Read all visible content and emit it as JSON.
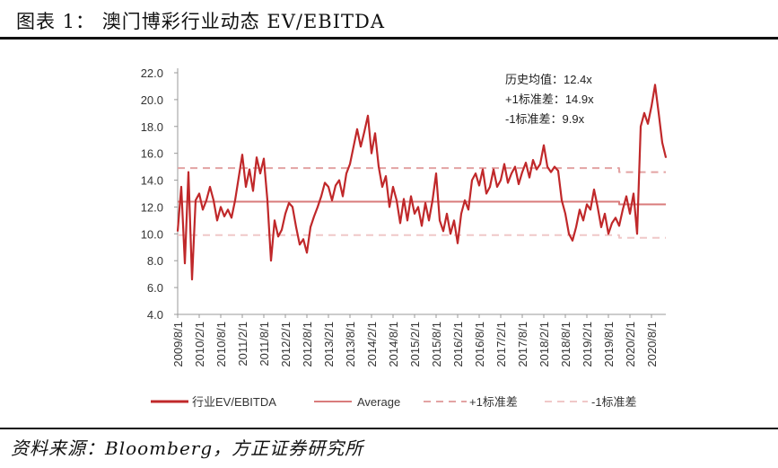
{
  "title": "图表 1：  澳门博彩行业动态 EV/EBITDA",
  "source": "资料来源：Bloomberg，方正证券研究所",
  "chart_data": {
    "type": "line",
    "title": "",
    "xlabel": "",
    "ylabel": "",
    "ylim": [
      4.0,
      22.0
    ],
    "y_ticks": [
      "4.0",
      "6.0",
      "8.0",
      "10.0",
      "12.0",
      "14.0",
      "16.0",
      "18.0",
      "20.0",
      "22.0"
    ],
    "x_tick_labels": [
      "2009/8/1",
      "2010/2/1",
      "2010/8/1",
      "2011/2/1",
      "2011/8/1",
      "2012/2/1",
      "2012/8/1",
      "2013/2/1",
      "2013/8/1",
      "2014/2/1",
      "2014/8/1",
      "2015/2/1",
      "2015/8/1",
      "2016/2/1",
      "2016/8/1",
      "2017/2/1",
      "2017/8/1",
      "2018/2/1",
      "2018/8/1",
      "2019/2/1",
      "2019/8/1",
      "2020/2/1",
      "2020/8/1"
    ],
    "x_range": [
      "2009-08",
      "2020-12"
    ],
    "grid": false,
    "legend_position": "bottom",
    "colors": {
      "main": "#c0282a",
      "average": "#d97b7b",
      "plus_std": "#e3a3a3",
      "minus_std": "#f0c8c8"
    },
    "series": [
      {
        "name": "行业EV/EBITDA",
        "style": "solid",
        "points": [
          [
            "2009-08",
            10.2
          ],
          [
            "2009-09",
            13.5
          ],
          [
            "2009-10",
            7.8
          ],
          [
            "2009-11",
            14.6
          ],
          [
            "2009-12",
            6.6
          ],
          [
            "2010-01",
            12.5
          ],
          [
            "2010-02",
            13.0
          ],
          [
            "2010-03",
            11.8
          ],
          [
            "2010-04",
            12.5
          ],
          [
            "2010-05",
            13.5
          ],
          [
            "2010-06",
            12.5
          ],
          [
            "2010-07",
            11.0
          ],
          [
            "2010-08",
            12.0
          ],
          [
            "2010-09",
            11.3
          ],
          [
            "2010-10",
            11.8
          ],
          [
            "2010-11",
            11.2
          ],
          [
            "2010-12",
            12.5
          ],
          [
            "2011-01",
            14.2
          ],
          [
            "2011-02",
            15.9
          ],
          [
            "2011-03",
            13.5
          ],
          [
            "2011-04",
            14.8
          ],
          [
            "2011-05",
            13.2
          ],
          [
            "2011-06",
            15.7
          ],
          [
            "2011-07",
            14.5
          ],
          [
            "2011-08",
            15.6
          ],
          [
            "2011-09",
            12.5
          ],
          [
            "2011-10",
            8.0
          ],
          [
            "2011-11",
            11.0
          ],
          [
            "2011-12",
            9.8
          ],
          [
            "2012-01",
            10.3
          ],
          [
            "2012-02",
            11.5
          ],
          [
            "2012-03",
            12.3
          ],
          [
            "2012-04",
            12.0
          ],
          [
            "2012-05",
            10.5
          ],
          [
            "2012-06",
            9.2
          ],
          [
            "2012-07",
            9.6
          ],
          [
            "2012-08",
            8.6
          ],
          [
            "2012-09",
            10.5
          ],
          [
            "2012-10",
            11.3
          ],
          [
            "2012-11",
            12.0
          ],
          [
            "2012-12",
            12.8
          ],
          [
            "2013-01",
            13.8
          ],
          [
            "2013-02",
            13.5
          ],
          [
            "2013-03",
            12.5
          ],
          [
            "2013-04",
            13.6
          ],
          [
            "2013-05",
            14.0
          ],
          [
            "2013-06",
            12.8
          ],
          [
            "2013-07",
            14.5
          ],
          [
            "2013-08",
            15.2
          ],
          [
            "2013-09",
            16.5
          ],
          [
            "2013-10",
            17.8
          ],
          [
            "2013-11",
            16.5
          ],
          [
            "2013-12",
            17.6
          ],
          [
            "2014-01",
            18.8
          ],
          [
            "2014-02",
            16.0
          ],
          [
            "2014-03",
            17.5
          ],
          [
            "2014-04",
            15.0
          ],
          [
            "2014-05",
            13.5
          ],
          [
            "2014-06",
            14.3
          ],
          [
            "2014-07",
            12.0
          ],
          [
            "2014-08",
            13.5
          ],
          [
            "2014-09",
            12.5
          ],
          [
            "2014-10",
            10.8
          ],
          [
            "2014-11",
            12.6
          ],
          [
            "2014-12",
            11.0
          ],
          [
            "2015-01",
            12.8
          ],
          [
            "2015-02",
            11.5
          ],
          [
            "2015-03",
            12.0
          ],
          [
            "2015-04",
            10.6
          ],
          [
            "2015-05",
            12.3
          ],
          [
            "2015-06",
            11.0
          ],
          [
            "2015-07",
            12.5
          ],
          [
            "2015-08",
            14.5
          ],
          [
            "2015-09",
            11.0
          ],
          [
            "2015-10",
            10.2
          ],
          [
            "2015-11",
            11.5
          ],
          [
            "2015-12",
            10.0
          ],
          [
            "2016-01",
            11.0
          ],
          [
            "2016-02",
            9.3
          ],
          [
            "2016-03",
            11.5
          ],
          [
            "2016-04",
            12.5
          ],
          [
            "2016-05",
            11.8
          ],
          [
            "2016-06",
            14.0
          ],
          [
            "2016-07",
            14.5
          ],
          [
            "2016-08",
            13.6
          ],
          [
            "2016-09",
            14.8
          ],
          [
            "2016-10",
            13.0
          ],
          [
            "2016-11",
            13.5
          ],
          [
            "2016-12",
            14.8
          ],
          [
            "2017-01",
            13.5
          ],
          [
            "2017-02",
            14.0
          ],
          [
            "2017-03",
            15.2
          ],
          [
            "2017-04",
            13.8
          ],
          [
            "2017-05",
            14.5
          ],
          [
            "2017-06",
            15.0
          ],
          [
            "2017-07",
            13.7
          ],
          [
            "2017-08",
            14.6
          ],
          [
            "2017-09",
            15.3
          ],
          [
            "2017-10",
            14.2
          ],
          [
            "2017-11",
            15.5
          ],
          [
            "2017-12",
            14.8
          ],
          [
            "2018-01",
            15.2
          ],
          [
            "2018-02",
            16.6
          ],
          [
            "2018-03",
            15.0
          ],
          [
            "2018-04",
            14.6
          ],
          [
            "2018-05",
            15.0
          ],
          [
            "2018-06",
            14.7
          ],
          [
            "2018-07",
            12.5
          ],
          [
            "2018-08",
            11.5
          ],
          [
            "2018-09",
            10.0
          ],
          [
            "2018-10",
            9.5
          ],
          [
            "2018-11",
            10.5
          ],
          [
            "2018-12",
            11.8
          ],
          [
            "2019-01",
            11.0
          ],
          [
            "2019-02",
            12.2
          ],
          [
            "2019-03",
            11.8
          ],
          [
            "2019-04",
            13.3
          ],
          [
            "2019-05",
            12.0
          ],
          [
            "2019-06",
            10.5
          ],
          [
            "2019-07",
            11.5
          ],
          [
            "2019-08",
            10.0
          ],
          [
            "2019-09",
            10.8
          ],
          [
            "2019-10",
            11.2
          ],
          [
            "2019-11",
            10.6
          ],
          [
            "2019-12",
            11.8
          ],
          [
            "2020-01",
            12.8
          ],
          [
            "2020-02",
            11.5
          ],
          [
            "2020-03",
            13.0
          ],
          [
            "2020-04",
            10.0
          ],
          [
            "2020-05",
            18.0
          ],
          [
            "2020-06",
            19.0
          ],
          [
            "2020-07",
            18.2
          ],
          [
            "2020-08",
            19.5
          ],
          [
            "2020-09",
            21.1
          ],
          [
            "2020-10",
            19.0
          ],
          [
            "2020-11",
            16.8
          ],
          [
            "2020-12",
            15.7
          ]
        ]
      },
      {
        "name": "Average",
        "style": "solid",
        "points": [
          [
            "2009-08",
            12.4
          ],
          [
            "2019-11",
            12.4
          ],
          [
            "2019-11",
            12.2
          ],
          [
            "2020-12",
            12.2
          ]
        ]
      },
      {
        "name": "+1标准差",
        "style": "dashed",
        "points": [
          [
            "2009-08",
            14.9
          ],
          [
            "2019-11",
            14.9
          ],
          [
            "2019-11",
            14.6
          ],
          [
            "2020-12",
            14.6
          ]
        ]
      },
      {
        "name": "-1标准差",
        "style": "dashed",
        "points": [
          [
            "2009-08",
            9.9
          ],
          [
            "2019-11",
            9.9
          ],
          [
            "2019-11",
            9.7
          ],
          [
            "2020-12",
            9.7
          ]
        ]
      }
    ],
    "annotations": [
      "历史均值：12.4x",
      "+1标准差：14.9x",
      "-1标准差：9.9x"
    ]
  }
}
